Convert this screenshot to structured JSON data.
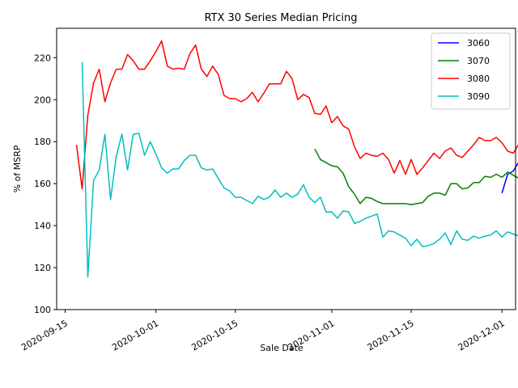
{
  "chart_data": {
    "type": "line",
    "title": "RTX 30 Series Median Pricing",
    "xlabel": "Sale Date",
    "ylabel": "% of MSRP",
    "ylim": [
      100,
      234
    ],
    "xlim": [
      -1.5,
      79.4
    ],
    "x_ticks": [
      {
        "day": 0,
        "label": "2020-09-15"
      },
      {
        "day": 16,
        "label": "2020-10-01"
      },
      {
        "day": 30,
        "label": "2020-10-15"
      },
      {
        "day": 47,
        "label": "2020-11-01"
      },
      {
        "day": 61,
        "label": "2020-11-15"
      },
      {
        "day": 77,
        "label": "2020-12-01"
      }
    ],
    "y_ticks": [
      100,
      120,
      140,
      160,
      180,
      200,
      220
    ],
    "x_day_zero": "2020-09-15",
    "legend_position": "top-right",
    "series": [
      {
        "name": "3060",
        "color": "#0000ff",
        "x": [
          77,
          78,
          79,
          80,
          81
        ],
        "values": [
          155.5,
          164.5,
          166,
          170.5,
          167.5
        ]
      },
      {
        "name": "3070",
        "color": "#008000",
        "x": [
          44,
          45,
          46,
          47,
          48,
          49,
          50,
          51,
          52,
          53,
          54,
          55,
          56,
          57,
          58,
          59,
          60,
          61,
          62,
          63,
          64,
          65,
          66,
          67,
          68,
          69,
          70,
          71,
          72,
          73,
          74,
          75,
          76,
          77,
          78,
          79,
          80,
          81
        ],
        "values": [
          176.5,
          171.5,
          170,
          168.5,
          168,
          165,
          158.5,
          155,
          150.5,
          153.5,
          153,
          151.5,
          150.5,
          150.5,
          150.5,
          150.5,
          150.5,
          150,
          150.5,
          151,
          154,
          155.5,
          155.5,
          154.5,
          160,
          160,
          157.5,
          158,
          160.5,
          160.5,
          163.5,
          163,
          164.5,
          163,
          165.5,
          164,
          162.5,
          162.5
        ]
      },
      {
        "name": "3080",
        "color": "#ff0000",
        "x": [
          2,
          3,
          4,
          5,
          6,
          7,
          8,
          9,
          10,
          11,
          12,
          13,
          14,
          15,
          16,
          17,
          18,
          19,
          20,
          21,
          22,
          23,
          24,
          25,
          26,
          27,
          28,
          29,
          30,
          31,
          32,
          33,
          34,
          35,
          36,
          37,
          38,
          39,
          40,
          41,
          42,
          43,
          44,
          45,
          46,
          47,
          48,
          49,
          50,
          51,
          52,
          53,
          54,
          55,
          56,
          57,
          58,
          59,
          60,
          61,
          62,
          63,
          64,
          65,
          66,
          67,
          68,
          69,
          70,
          71,
          72,
          73,
          74,
          75,
          76,
          77,
          78,
          79,
          80,
          81
        ],
        "values": [
          178.5,
          157.5,
          192.5,
          208,
          214.5,
          199,
          208,
          214.5,
          214.5,
          221.5,
          218.5,
          214.5,
          214.5,
          218.5,
          223,
          228,
          216,
          214.5,
          215,
          214.5,
          222,
          226,
          214.5,
          211,
          216,
          212,
          202,
          200.5,
          200.5,
          199,
          200.5,
          203.5,
          199,
          203,
          207.5,
          207.5,
          207.5,
          213.5,
          210,
          200,
          202.5,
          201,
          193.5,
          193,
          197,
          189,
          192,
          187.5,
          186,
          177.5,
          172,
          174.5,
          173.5,
          173,
          174.5,
          171.5,
          165,
          171,
          164.5,
          171.5,
          164.5,
          167.5,
          171,
          174.5,
          172,
          175.5,
          177,
          173.5,
          172.5,
          175.5,
          178.5,
          182,
          180.5,
          180.5,
          182,
          179.5,
          175.5,
          174.5,
          179,
          172
        ]
      },
      {
        "name": "3090",
        "color": "#00bfbf",
        "x": [
          3,
          4,
          5,
          6,
          7,
          8,
          9,
          10,
          11,
          12,
          13,
          14,
          15,
          16,
          17,
          18,
          19,
          20,
          21,
          22,
          23,
          24,
          25,
          26,
          27,
          28,
          29,
          30,
          31,
          32,
          33,
          34,
          35,
          36,
          37,
          38,
          39,
          40,
          41,
          42,
          43,
          44,
          45,
          46,
          47,
          48,
          49,
          50,
          51,
          52,
          53,
          54,
          55,
          56,
          57,
          58,
          59,
          60,
          61,
          62,
          63,
          64,
          65,
          66,
          67,
          68,
          69,
          70,
          71,
          72,
          73,
          74,
          75,
          76,
          77,
          78,
          79,
          80,
          81
        ],
        "values": [
          218,
          115.5,
          161.5,
          166.5,
          183.5,
          152.5,
          173,
          183.5,
          166.5,
          183.5,
          184,
          173.5,
          180,
          174,
          167.5,
          165,
          167,
          167,
          171,
          173.5,
          173.5,
          167.5,
          166.5,
          167,
          162.5,
          158,
          156.5,
          153.5,
          153.5,
          152,
          150.5,
          154,
          152.5,
          153.5,
          157,
          153.5,
          155.5,
          153.5,
          155,
          159.5,
          153.5,
          151,
          153.5,
          146.5,
          146.5,
          143.5,
          147,
          146.5,
          141,
          142,
          143.5,
          144.5,
          145.5,
          134.5,
          137.5,
          137,
          135.5,
          134,
          130.5,
          133.5,
          130,
          130.5,
          131.5,
          133.5,
          136.5,
          131,
          137.5,
          133.5,
          133,
          135,
          134,
          135,
          135.5,
          137.5,
          134.5,
          137,
          136,
          135,
          141.5
        ]
      }
    ]
  }
}
